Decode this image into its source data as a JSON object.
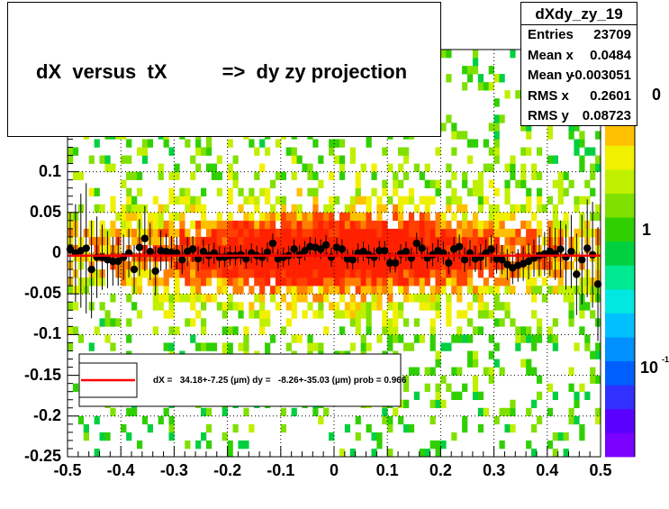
{
  "chart_data": {
    "type": "heatmap",
    "title": "dX  versus  tX          =>  dy zy projection",
    "xlabel": "",
    "ylabel": "",
    "xlim": [
      -0.5,
      0.5
    ],
    "ylim": [
      -0.25,
      0.25
    ],
    "x_ticks": [
      "-0.5",
      "-0.4",
      "-0.3",
      "-0.2",
      "-0.1",
      "0",
      "0.1",
      "0.2",
      "0.3",
      "0.4",
      "0.5"
    ],
    "y_ticks": [
      "-0.25",
      "-0.2",
      "-0.15",
      "-0.1",
      "-0.05",
      "0",
      "0.05",
      "0.1"
    ],
    "z_ticks": [
      "1",
      "10"
    ],
    "z_tick_partial": [
      "10",
      "-1"
    ],
    "z_scale": "log",
    "grid": true,
    "palette": [
      "#7a00ff",
      "#5a00ff",
      "#3030ff",
      "#0060ff",
      "#0090ff",
      "#00c0ff",
      "#00e8e0",
      "#00e890",
      "#00d040",
      "#30d000",
      "#80e000",
      "#c0f000",
      "#f0f000",
      "#ffc000",
      "#ff8000",
      "#ff4000",
      "#ff2000"
    ],
    "profile": {
      "name": "profile",
      "x": [
        -0.495,
        -0.485,
        -0.475,
        -0.465,
        -0.455,
        -0.445,
        -0.435,
        -0.425,
        -0.415,
        -0.405,
        -0.395,
        -0.385,
        -0.375,
        -0.365,
        -0.355,
        -0.345,
        -0.335,
        -0.325,
        -0.315,
        -0.305,
        -0.295,
        -0.285,
        -0.275,
        -0.265,
        -0.255,
        -0.245,
        -0.235,
        -0.225,
        -0.215,
        -0.205,
        -0.195,
        -0.185,
        -0.175,
        -0.165,
        -0.155,
        -0.145,
        -0.135,
        -0.125,
        -0.115,
        -0.105,
        -0.095,
        -0.085,
        -0.075,
        -0.065,
        -0.055,
        -0.045,
        -0.035,
        -0.025,
        -0.015,
        -0.005,
        0.005,
        0.015,
        0.025,
        0.035,
        0.045,
        0.055,
        0.065,
        0.075,
        0.085,
        0.095,
        0.105,
        0.115,
        0.125,
        0.135,
        0.145,
        0.155,
        0.165,
        0.175,
        0.185,
        0.195,
        0.205,
        0.215,
        0.225,
        0.235,
        0.245,
        0.255,
        0.265,
        0.275,
        0.285,
        0.295,
        0.305,
        0.315,
        0.325,
        0.335,
        0.345,
        0.355,
        0.365,
        0.375,
        0.385,
        0.395,
        0.405,
        0.415,
        0.425,
        0.435,
        0.445,
        0.455,
        0.465,
        0.475,
        0.485,
        0.495
      ],
      "y": [
        0.005,
        0.0,
        0.003,
        0.006,
        -0.02,
        -0.005,
        -0.005,
        -0.008,
        -0.01,
        -0.01,
        -0.005,
        0.0,
        -0.02,
        0.007,
        0.018,
        0.002,
        -0.022,
        0.003,
        0.002,
        0.001,
        0.0,
        -0.008,
        0.002,
        0.005,
        -0.007,
        0.002,
        -0.003,
        0.0,
        -0.005,
        -0.005,
        -0.003,
        -0.003,
        -0.002,
        -0.007,
        0.0,
        -0.003,
        -0.005,
        0.001,
        0.012,
        -0.007,
        -0.005,
        -0.003,
        0.005,
        -0.002,
        0.003,
        0.008,
        0.007,
        0.005,
        0.01,
        -0.005,
        0.007,
        0.005,
        -0.007,
        -0.008,
        0.0,
        0.002,
        -0.002,
        -0.005,
        0.003,
        0.003,
        -0.012,
        -0.012,
        -0.001,
        0.002,
        -0.006,
        0.012,
        0.006,
        -0.006,
        -0.002,
        0.003,
        0.0,
        -0.012,
        0.005,
        0.008,
        -0.008,
        0.0,
        -0.007,
        -0.005,
        0.0,
        0.005,
        -0.007,
        -0.008,
        -0.014,
        -0.018,
        -0.015,
        -0.013,
        -0.01,
        -0.006,
        -0.003,
        -0.001,
        0.002,
        -0.001,
        0.005,
        -0.005,
        0.002,
        -0.026,
        -0.008,
        0.006,
        -0.002,
        -0.038
      ],
      "err": [
        0.045,
        0.06,
        0.07,
        0.08,
        0.06,
        0.05,
        0.04,
        0.035,
        0.03,
        0.03,
        0.028,
        0.03,
        0.03,
        0.035,
        0.04,
        0.035,
        0.03,
        0.025,
        0.022,
        0.02,
        0.02,
        0.018,
        0.018,
        0.016,
        0.015,
        0.015,
        0.014,
        0.013,
        0.013,
        0.012,
        0.012,
        0.012,
        0.012,
        0.012,
        0.012,
        0.012,
        0.012,
        0.012,
        0.012,
        0.012,
        0.012,
        0.012,
        0.012,
        0.012,
        0.012,
        0.012,
        0.012,
        0.012,
        0.012,
        0.012,
        0.012,
        0.012,
        0.012,
        0.012,
        0.012,
        0.012,
        0.012,
        0.012,
        0.012,
        0.012,
        0.012,
        0.012,
        0.012,
        0.012,
        0.013,
        0.013,
        0.013,
        0.013,
        0.014,
        0.014,
        0.014,
        0.014,
        0.015,
        0.015,
        0.015,
        0.016,
        0.016,
        0.016,
        0.017,
        0.017,
        0.018,
        0.018,
        0.019,
        0.02,
        0.02,
        0.021,
        0.022,
        0.023,
        0.025,
        0.027,
        0.03,
        0.032,
        0.035,
        0.04,
        0.045,
        0.05,
        0.055,
        0.06,
        0.065,
        0.07
      ]
    },
    "fit": {
      "name": "fit",
      "x_range": [
        -0.5,
        0.5
      ],
      "y": -0.003
    },
    "fit_label": "dX =   34.18+-7.25 (µm) dy =   -8.26+-35.03 (µm) prob = 0.966",
    "stats": {
      "title": "dXdy_zy_19",
      "rows": [
        {
          "key": "Entries",
          "value": "23709"
        },
        {
          "key": "Mean x",
          "value": "0.0484"
        },
        {
          "key": "Mean y",
          "value": "-0.003051"
        },
        {
          "key": "RMS x",
          "value": "0.2601"
        },
        {
          "key": "RMS y",
          "value": "0.08723"
        }
      ]
    }
  },
  "colors": {
    "profile": "#000000",
    "fit": "#ff0000",
    "grid": "#000000"
  }
}
